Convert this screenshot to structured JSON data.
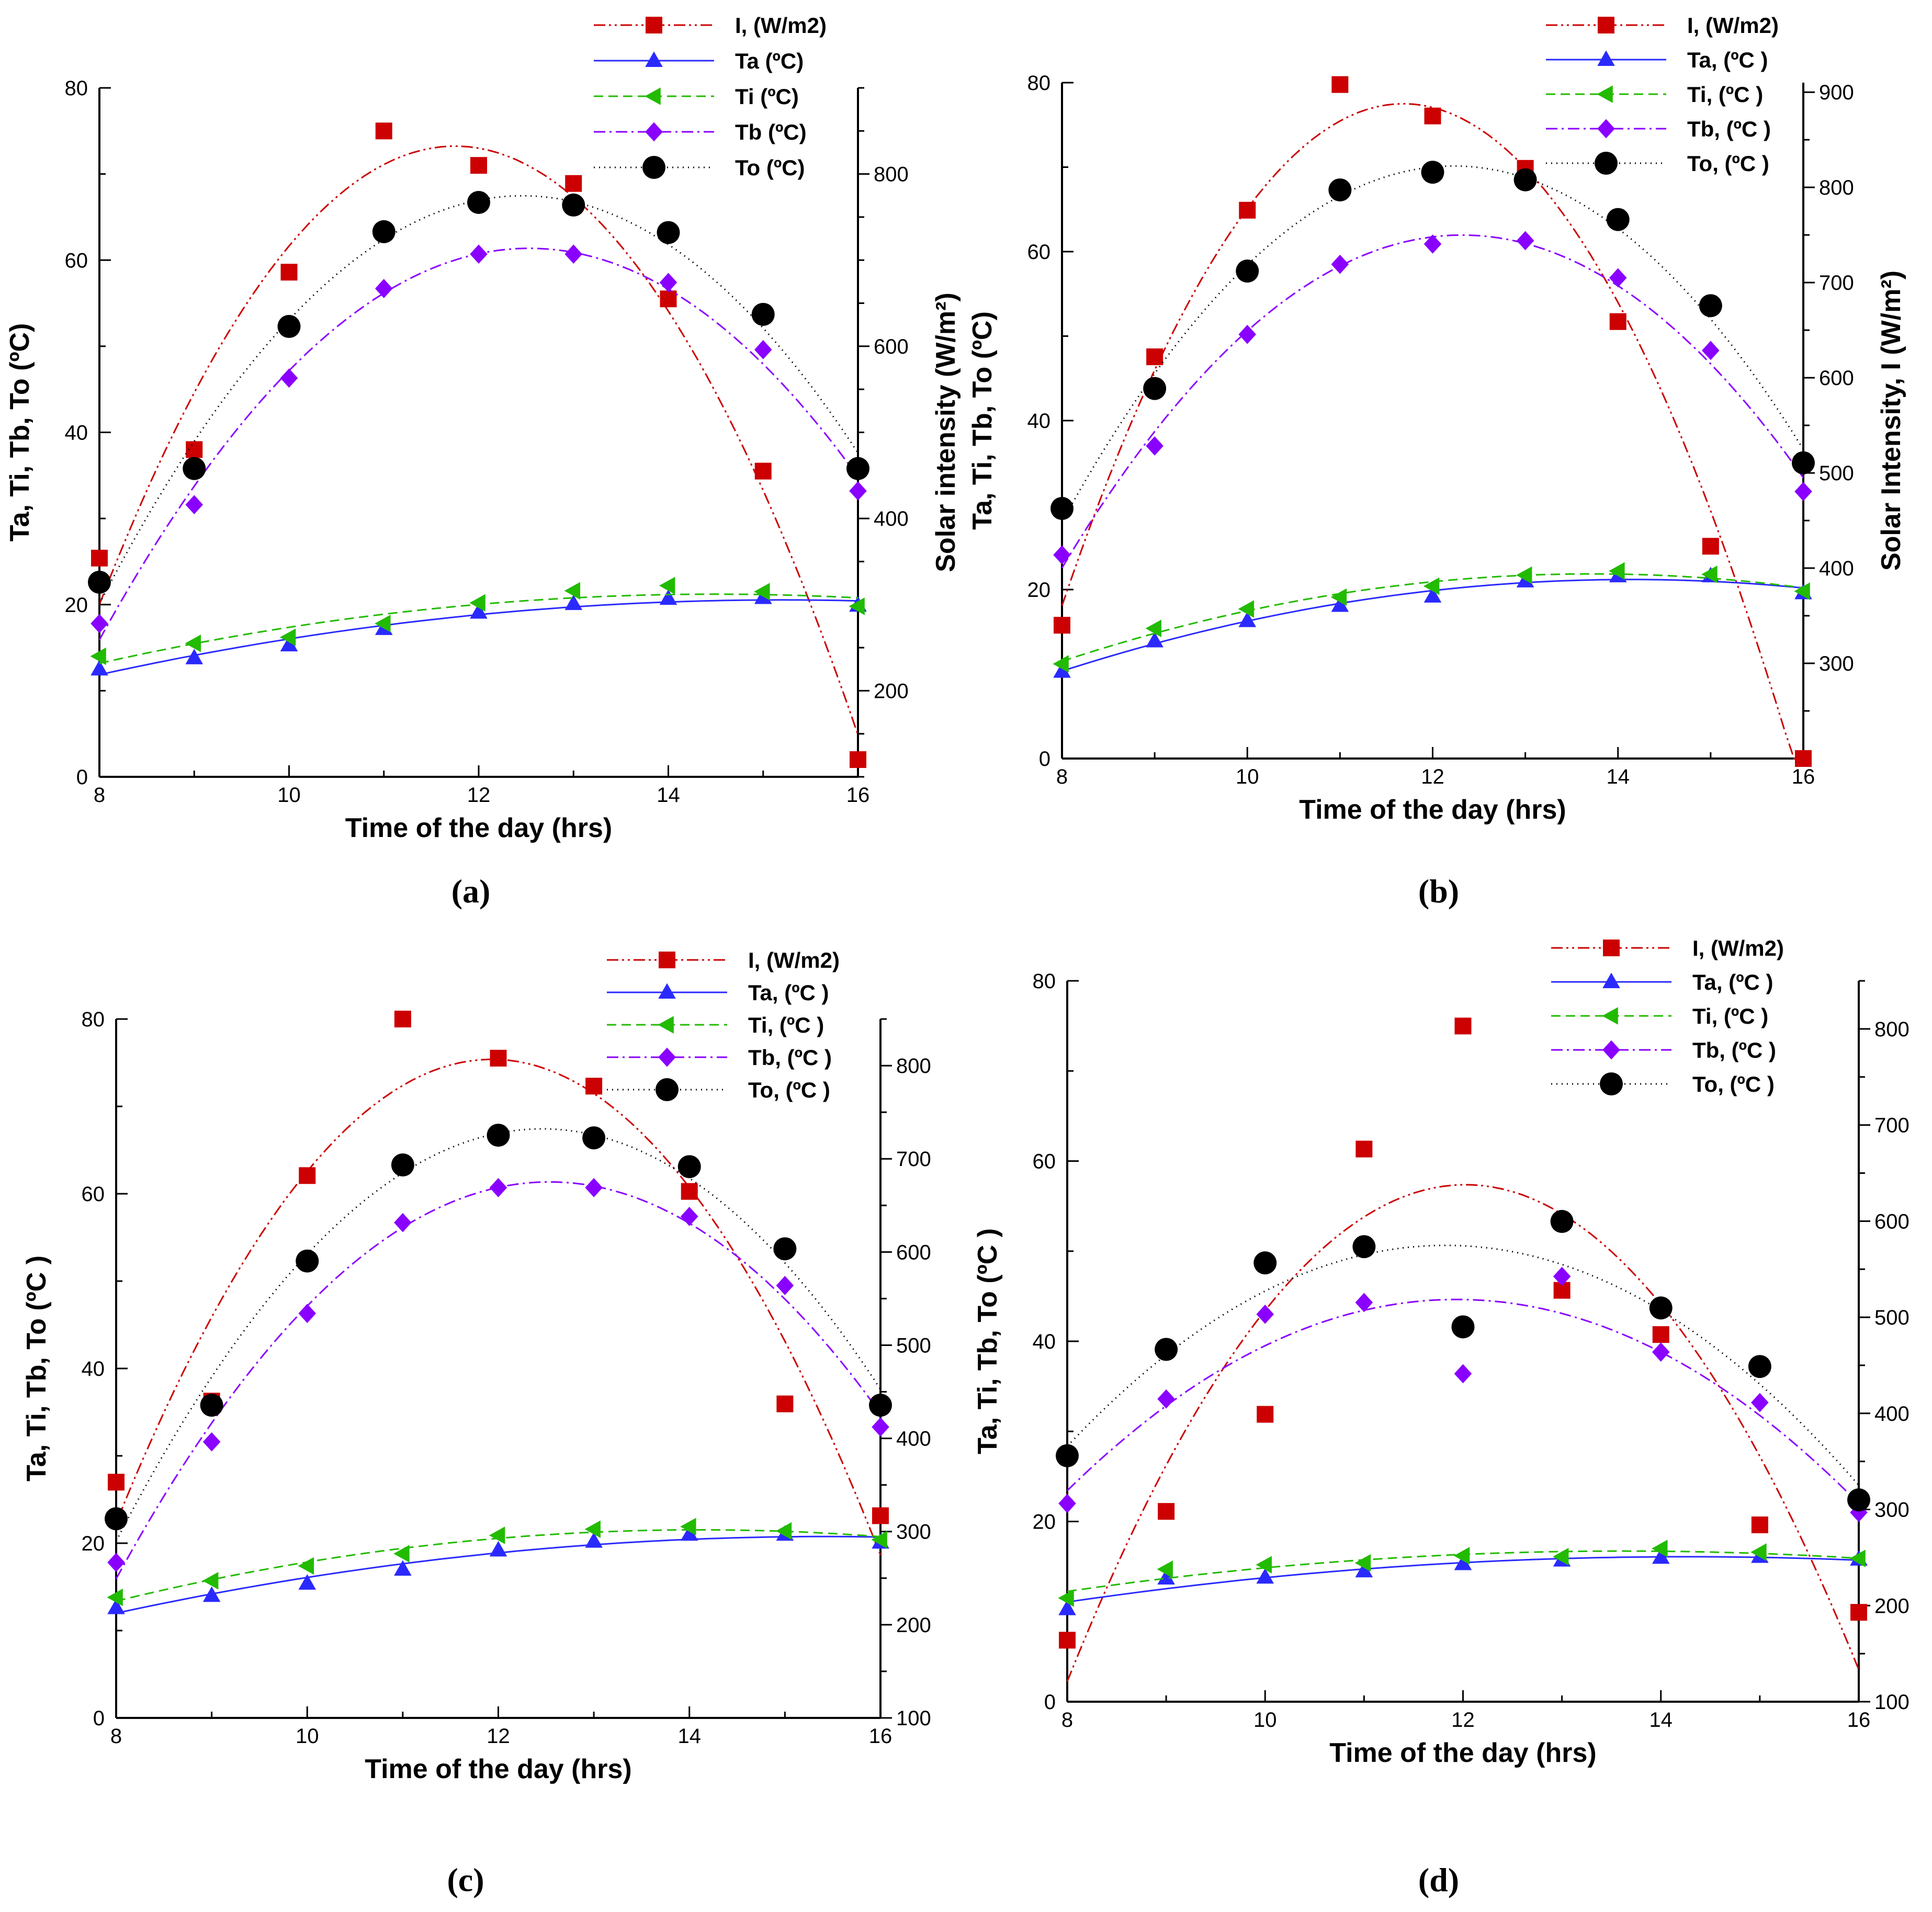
{
  "figure": {
    "panel_labels": [
      "(a)",
      "(b)",
      "(c)",
      "(d)"
    ]
  },
  "series_styles": [
    {
      "key": "I",
      "color": "#cc0000",
      "marker": "square",
      "dash": "dashdotdot"
    },
    {
      "key": "Ta",
      "color": "#2a2aff",
      "marker": "triangle-up",
      "dash": "solid"
    },
    {
      "key": "Ti",
      "color": "#22bb00",
      "marker": "triangle-left",
      "dash": "dashed"
    },
    {
      "key": "Tb",
      "color": "#8a00ff",
      "marker": "diamond",
      "dash": "dashdot"
    },
    {
      "key": "To",
      "color": "#000000",
      "marker": "circle",
      "dash": "dotted"
    }
  ],
  "chart_data": [
    {
      "panel": "(a)",
      "type": "scatter",
      "xlabel": "Time of the day (hrs)",
      "ylabel": "Ta, Ti, Tb, To  (ºC)",
      "y2label": "Solar intensity (W/m²)",
      "xlim": [
        8,
        16
      ],
      "ylim": [
        0,
        80
      ],
      "y2lim": [
        100,
        900
      ],
      "xticks": [
        8,
        10,
        12,
        14,
        16
      ],
      "yticks": [
        0,
        20,
        40,
        60,
        80
      ],
      "y2ticks": [
        200,
        400,
        600,
        800
      ],
      "x": [
        8,
        9,
        10,
        11,
        12,
        13,
        14,
        15,
        16
      ],
      "series": [
        {
          "name": "I, (W/m2)",
          "axis": "right",
          "values": [
            354,
            480,
            686,
            850,
            810,
            789,
            655,
            455,
            120
          ]
        },
        {
          "name": "Ta (ºC)",
          "axis": "left",
          "values": [
            12.5,
            13.8,
            15.3,
            17.2,
            19.1,
            20.1,
            20.7,
            20.8,
            19.9
          ]
        },
        {
          "name": "Ti  (ºC)",
          "axis": "left",
          "values": [
            14.0,
            15.5,
            16.2,
            17.8,
            20.2,
            21.6,
            22.2,
            21.5,
            19.8
          ]
        },
        {
          "name": "Tb (ºC)",
          "axis": "left",
          "values": [
            17.8,
            31.6,
            46.3,
            56.7,
            60.7,
            60.7,
            57.4,
            49.6,
            33.2
          ]
        },
        {
          "name": "To (ºC)",
          "axis": "left",
          "values": [
            22.6,
            35.8,
            52.3,
            63.3,
            66.7,
            66.4,
            63.2,
            53.7,
            35.8
          ]
        }
      ]
    },
    {
      "panel": "(b)",
      "type": "scatter",
      "xlabel": "Time of the day (hrs)",
      "ylabel": "Ta, Ti, Tb, To (ºC)",
      "y2label": "Solar Intensity, I  (W/m²)",
      "xlim": [
        8,
        16
      ],
      "ylim": [
        0,
        80
      ],
      "y2lim": [
        200,
        910
      ],
      "xticks": [
        8,
        10,
        12,
        14,
        16
      ],
      "yticks": [
        0,
        20,
        40,
        60,
        80
      ],
      "y2ticks": [
        300,
        400,
        500,
        600,
        700,
        800,
        900
      ],
      "x": [
        8,
        9,
        10,
        11,
        12,
        13,
        14,
        15,
        16
      ],
      "series": [
        {
          "name": "I, (W/m2)",
          "axis": "right",
          "values": [
            340,
            622,
            776,
            908,
            875,
            820,
            659,
            423,
            200
          ]
        },
        {
          "name": "Ta, (ºC )",
          "axis": "left",
          "values": [
            10.3,
            13.9,
            16.3,
            18.1,
            19.2,
            21.0,
            21.6,
            21.6,
            19.6
          ]
        },
        {
          "name": "Ti, (ºC )",
          "axis": "left",
          "values": [
            11.2,
            15.4,
            17.7,
            19.1,
            20.4,
            21.7,
            22.2,
            21.8,
            19.8
          ]
        },
        {
          "name": "Tb, (ºC )",
          "axis": "left",
          "values": [
            24.1,
            37.0,
            50.2,
            58.5,
            60.9,
            61.3,
            56.9,
            48.3,
            31.6
          ]
        },
        {
          "name": "To, (ºC )",
          "axis": "left",
          "values": [
            29.6,
            43.8,
            57.7,
            67.3,
            69.4,
            68.5,
            63.8,
            53.6,
            35.0
          ]
        }
      ]
    },
    {
      "panel": "(c)",
      "type": "scatter",
      "xlabel": "Time of the day (hrs)",
      "ylabel": "Ta, Ti, Tb, To (ºC )",
      "y2label": "",
      "xlim": [
        8,
        16
      ],
      "ylim": [
        0,
        80
      ],
      "y2lim": [
        100,
        850
      ],
      "xticks": [
        8,
        10,
        12,
        14,
        16
      ],
      "yticks": [
        0,
        20,
        40,
        60,
        80
      ],
      "y2ticks": [
        100,
        200,
        300,
        400,
        500,
        600,
        700,
        800
      ],
      "x": [
        8,
        9,
        10,
        11,
        12,
        13,
        14,
        15,
        16
      ],
      "series": [
        {
          "name": "I, (W/m2)",
          "axis": "right",
          "values": [
            353,
            440,
            682,
            850,
            808,
            778,
            665,
            437,
            317
          ]
        },
        {
          "name": "Ta, (ºC )",
          "axis": "left",
          "values": [
            12.6,
            14.0,
            15.4,
            17.0,
            19.2,
            20.2,
            21.0,
            21.0,
            20.1
          ]
        },
        {
          "name": "Ti, (ºC )",
          "axis": "left",
          "values": [
            13.8,
            15.7,
            17.4,
            18.8,
            20.9,
            21.6,
            21.9,
            21.4,
            20.4
          ]
        },
        {
          "name": "Tb, (ºC )",
          "axis": "left",
          "values": [
            17.8,
            31.6,
            46.3,
            56.7,
            60.7,
            60.7,
            57.4,
            49.5,
            33.3
          ]
        },
        {
          "name": "To, (ºC )",
          "axis": "left",
          "values": [
            22.8,
            35.8,
            52.3,
            63.3,
            66.7,
            66.4,
            63.1,
            53.7,
            35.8
          ]
        }
      ]
    },
    {
      "panel": "(d)",
      "type": "scatter",
      "xlabel": "Time of the day (hrs)",
      "ylabel": "Ta, Ti, Tb, To (ºC )",
      "y2label": "",
      "xlim": [
        8,
        16
      ],
      "ylim": [
        0,
        80
      ],
      "y2lim": [
        100,
        850
      ],
      "xticks": [
        8,
        10,
        12,
        14,
        16
      ],
      "yticks": [
        0,
        20,
        40,
        60,
        80
      ],
      "y2ticks": [
        100,
        200,
        300,
        400,
        500,
        600,
        700,
        800
      ],
      "x": [
        8,
        9,
        10,
        11,
        12,
        13,
        14,
        15,
        16
      ],
      "series": [
        {
          "name": "I, (W/m2)",
          "axis": "right",
          "values": [
            164,
            298,
            399,
            675,
            803,
            528,
            482,
            284,
            193
          ]
        },
        {
          "name": "Ta, (ºC )",
          "axis": "left",
          "values": [
            10.3,
            13.7,
            13.8,
            14.5,
            15.3,
            15.7,
            16.0,
            16.1,
            15.8
          ]
        },
        {
          "name": "Ti, (ºC )",
          "axis": "left",
          "values": [
            11.5,
            14.7,
            15.2,
            15.4,
            16.2,
            16.1,
            17.0,
            16.6,
            15.9
          ]
        },
        {
          "name": "Tb, (ºC )",
          "axis": "left",
          "values": [
            22.0,
            33.6,
            43.0,
            44.3,
            36.4,
            47.2,
            38.8,
            33.2,
            21.0
          ]
        },
        {
          "name": "To, (ºC )",
          "axis": "left",
          "values": [
            27.3,
            39.1,
            48.7,
            50.5,
            41.6,
            53.3,
            43.7,
            37.2,
            22.4
          ]
        }
      ]
    }
  ]
}
